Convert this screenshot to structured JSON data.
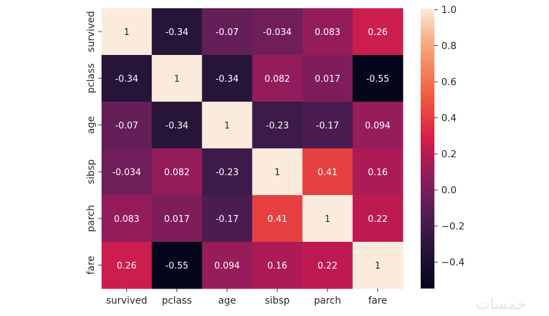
{
  "chart_data": {
    "type": "heatmap",
    "title": "",
    "xlabel": "",
    "ylabel": "",
    "x_labels": [
      "survived",
      "pclass",
      "age",
      "sibsp",
      "parch",
      "fare"
    ],
    "y_labels": [
      "survived",
      "pclass",
      "age",
      "sibsp",
      "parch",
      "fare"
    ],
    "values": [
      [
        1,
        -0.34,
        -0.07,
        -0.034,
        0.083,
        0.26
      ],
      [
        -0.34,
        1,
        -0.34,
        0.082,
        0.017,
        -0.55
      ],
      [
        -0.07,
        -0.34,
        1,
        -0.23,
        -0.17,
        0.094
      ],
      [
        -0.034,
        0.082,
        -0.23,
        1,
        0.41,
        0.16
      ],
      [
        0.083,
        0.017,
        -0.17,
        0.41,
        1,
        0.22
      ],
      [
        0.26,
        -0.55,
        0.094,
        0.16,
        0.22,
        1
      ]
    ],
    "annotations": [
      [
        "1",
        "-0.34",
        "-0.07",
        "-0.034",
        "0.083",
        "0.26"
      ],
      [
        "-0.34",
        "1",
        "-0.34",
        "0.082",
        "0.017",
        "-0.55"
      ],
      [
        "-0.07",
        "-0.34",
        "1",
        "-0.23",
        "-0.17",
        "0.094"
      ],
      [
        "-0.034",
        "0.082",
        "-0.23",
        "1",
        "0.41",
        "0.16"
      ],
      [
        "0.083",
        "0.017",
        "-0.17",
        "0.41",
        "1",
        "0.22"
      ],
      [
        "0.26",
        "-0.55",
        "0.094",
        "0.16",
        "0.22",
        "1"
      ]
    ],
    "colorbar": {
      "colormap": "rocket",
      "range": [
        -0.55,
        1.0
      ],
      "ticks": [
        1.0,
        0.8,
        0.6,
        0.4,
        0.2,
        0.0,
        -0.2,
        -0.4
      ],
      "tick_labels": [
        "1.0",
        "0.8",
        "0.6",
        "0.4",
        "0.2",
        "0.0",
        "−0.2",
        "−0.4"
      ]
    },
    "grid": false,
    "colors": {
      "low": "#03051a",
      "high": "#faebdd",
      "annotation_dark": "#ffffff",
      "annotation_light": "#262626"
    }
  },
  "watermark": "خمسات"
}
